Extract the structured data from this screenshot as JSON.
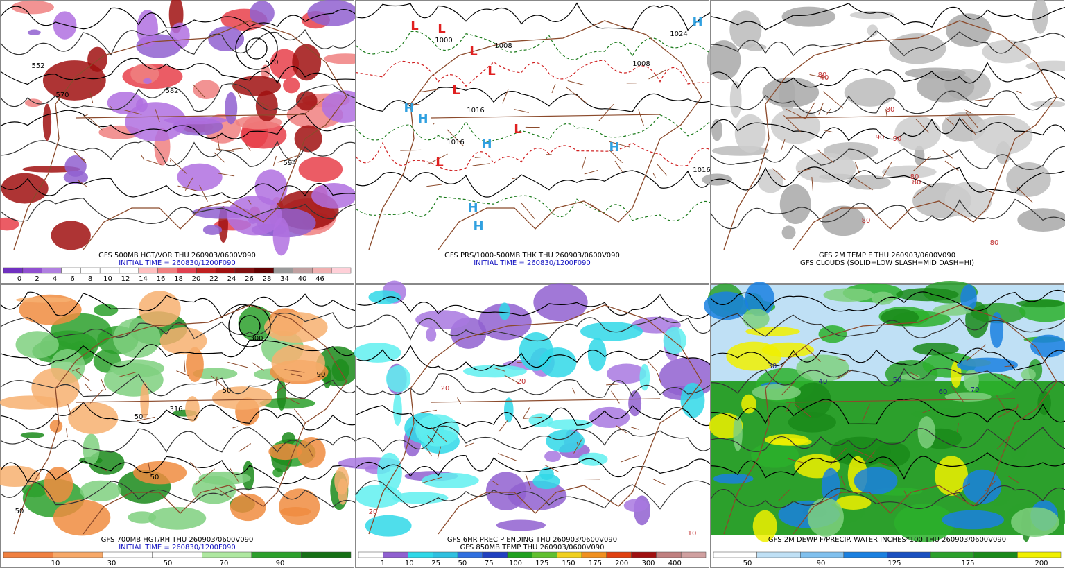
{
  "panels": [
    {
      "captions": [
        "GFS 500MB HGT/VOR THU 260903/0600V090",
        "INITIAL TIME = 260830/1200F090"
      ],
      "legend": [
        0,
        2,
        4,
        6,
        8,
        10,
        12,
        14,
        16,
        18,
        20,
        22,
        24,
        26,
        28,
        34,
        40,
        46
      ],
      "labels": [
        "552",
        "570",
        "582",
        "570",
        "594"
      ]
    },
    {
      "captions": [
        "GFS PRS/1000-500MB THK THU 260903/0600V090",
        "INITIAL TIME = 260830/1200F090"
      ],
      "labels": [
        "L",
        "L",
        "L",
        "L",
        "L",
        "L",
        "L",
        "H",
        "H",
        "H",
        "H",
        "H",
        "H",
        "H",
        "1000",
        "1008",
        "1016",
        "1016",
        "1008",
        "1016",
        "1024"
      ]
    },
    {
      "captions": [
        "GFS 2M TEMP F THU 260903/0600V090",
        "GFS CLOUDS (SOLID=LOW SLASH=MID DASH=HI)"
      ],
      "labels": [
        "80",
        "80",
        "90",
        "90",
        "80",
        "80",
        "80",
        "40",
        "80"
      ]
    },
    {
      "captions": [
        "GFS 700MB HGT/RH THU 260903/0600V090",
        "INITIAL TIME = 260830/1200F090"
      ],
      "legend": [
        10,
        30,
        50,
        70,
        90
      ],
      "labels": [
        "300",
        "316",
        "50",
        "50",
        "50",
        "50",
        "90"
      ]
    },
    {
      "captions": [
        "GFS 6HR PRECIP ENDING THU 260903/0600V090",
        "GFS 850MB TEMP THU 260903/0600V090"
      ],
      "legend": [
        1,
        10,
        25,
        50,
        75,
        100,
        125,
        150,
        175,
        200,
        300,
        400
      ],
      "labels": [
        "20",
        "20",
        "20",
        "10"
      ]
    },
    {
      "captions": [
        "GFS 2M DEWP F/PRECIP. WATER INCHES*100 THU 260903/0600V090"
      ],
      "legend": [
        50,
        90,
        125,
        175,
        200
      ],
      "labels": [
        "30",
        "40",
        "50",
        "60",
        "70"
      ]
    }
  ]
}
